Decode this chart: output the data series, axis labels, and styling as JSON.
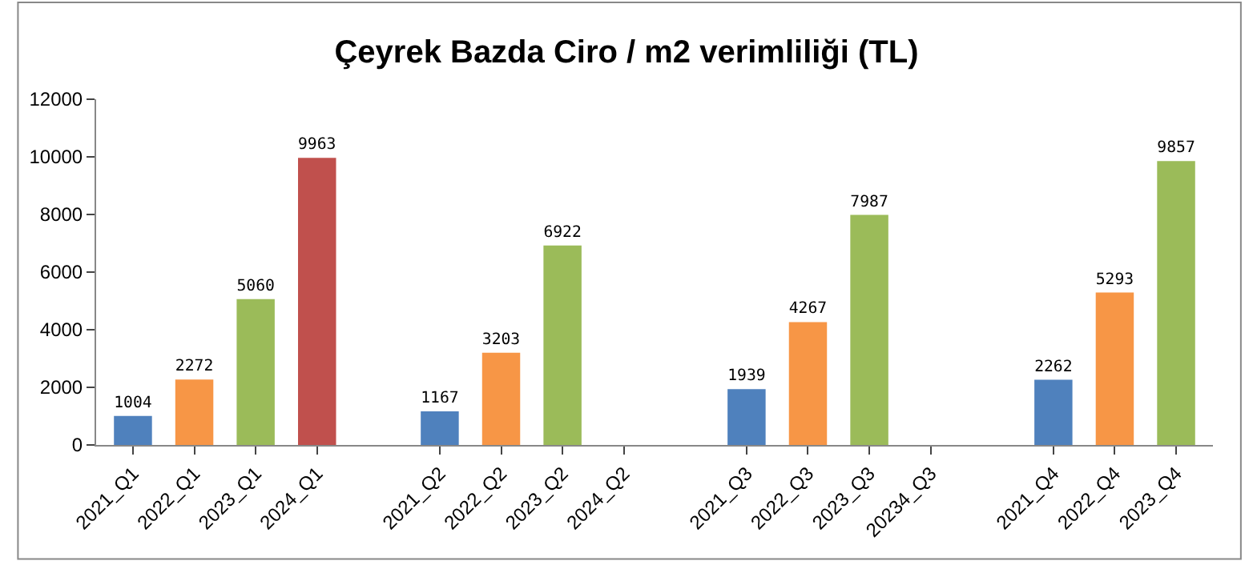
{
  "chart_data": {
    "type": "bar",
    "title": "Çeyrek Bazda Ciro / m2 verimliliği (TL)",
    "categories": [
      "2021_Q1",
      "2022_Q1",
      "2023_Q1",
      "2024_Q1",
      null,
      "2021_Q2",
      "2022_Q2",
      "2023_Q2",
      "2024_Q2",
      null,
      "2021_Q3",
      "2022_Q3",
      "2023_Q3",
      "20234_Q3",
      null,
      "2021_Q4",
      "2022_Q4",
      "2023_Q4"
    ],
    "values": [
      1004,
      2272,
      5060,
      9963,
      null,
      1167,
      3203,
      6922,
      null,
      null,
      1939,
      4267,
      7987,
      null,
      null,
      2262,
      5293,
      9857
    ],
    "colors": [
      "#4f81bd",
      "#f79646",
      "#9bbb59",
      "#c0504d",
      "#ffffff",
      "#4f81bd",
      "#f79646",
      "#9bbb59",
      "#c0504d",
      "#ffffff",
      "#4f81bd",
      "#f79646",
      "#9bbb59",
      "#c0504d",
      "#ffffff",
      "#4f81bd",
      "#f79646",
      "#9bbb59"
    ],
    "ylim": [
      0,
      12000
    ],
    "yticks": [
      0,
      2000,
      4000,
      6000,
      8000,
      10000,
      12000
    ],
    "data_labels": true
  }
}
